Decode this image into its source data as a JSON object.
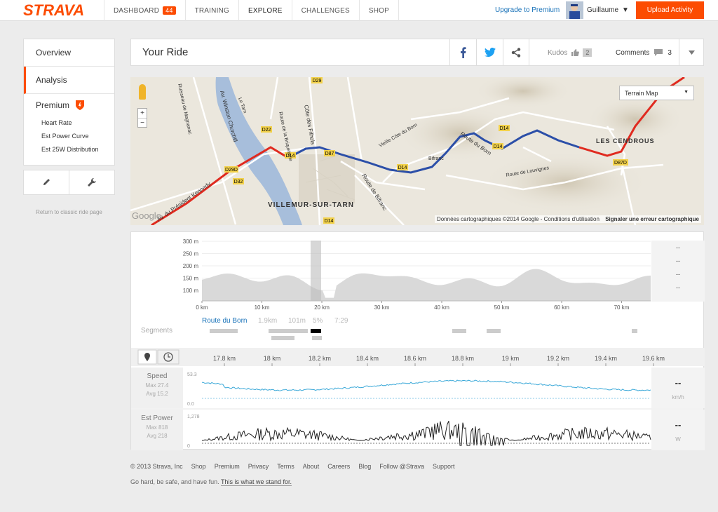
{
  "app": {
    "logo": "STRAVA",
    "brand_color": "#fc4c02"
  },
  "nav": {
    "items": [
      {
        "label": "DASHBOARD",
        "badge": "44"
      },
      {
        "label": "TRAINING"
      },
      {
        "label": "EXPLORE"
      },
      {
        "label": "CHALLENGES"
      },
      {
        "label": "SHOP"
      }
    ],
    "upgrade": "Upgrade to Premium",
    "user": "Guillaume",
    "upload": "Upload Activity"
  },
  "sidebar": {
    "overview": "Overview",
    "analysis": "Analysis",
    "premium": "Premium",
    "premium_items": [
      "Heart Rate",
      "Est Power Curve",
      "Est 25W Distribution"
    ],
    "classic": "Return to classic ride page"
  },
  "header": {
    "title": "Your Ride",
    "kudos_label": "Kudos",
    "kudos_count": "2",
    "comments_label": "Comments",
    "comments_count": "3"
  },
  "map": {
    "type_select": "Terrain Map",
    "zoom_in": "+",
    "zoom_out": "−",
    "attribution": "Données cartographiques ©2014 Google - Conditions d'utilisation",
    "report": "Signaler une erreur cartographique",
    "google": "Google",
    "labels": [
      "VILLEMUR-SUR-TARN",
      "LES CENDROUS",
      "Route du Born",
      "Route de Bifranc",
      "Route de Louvignes",
      "Vieille Côte du Born",
      "Côte des Filhols",
      "Av. Winston Churchill",
      "Le Tarn",
      "Av. du Président Kennedy",
      "Ruisseau de Magnanac",
      "Bifranc",
      "Route de la Briqueterie"
    ],
    "road_badges": [
      "D29",
      "D22",
      "D29D",
      "D32",
      "D14",
      "D87",
      "D14",
      "D14",
      "D87D",
      "D14",
      "D14"
    ]
  },
  "elevation": {
    "y_ticks": [
      "300 m",
      "250 m",
      "200 m",
      "150 m",
      "100 m"
    ],
    "x_ticks": [
      "0 km",
      "10 km",
      "20 km",
      "30 km",
      "40 km",
      "50 km",
      "60 km",
      "70 km"
    ],
    "right_dashes": [
      "--",
      "--",
      "--",
      "--"
    ]
  },
  "segments": {
    "label": "Segments",
    "name": "Route du Born",
    "dist": "1.9km",
    "elev": "101m",
    "grade": "5%",
    "time": "7:29"
  },
  "zoom_axis": {
    "ticks": [
      "17.8 km",
      "18 km",
      "18.2 km",
      "18.4 km",
      "18.6 km",
      "18.8 km",
      "19 km",
      "19.2 km",
      "19.4 km",
      "19.6 km"
    ]
  },
  "speed": {
    "label": "Speed",
    "max": "Max 27.4",
    "avg": "Avg 15.2",
    "top": "53.3",
    "bottom": "0.0",
    "value": "--",
    "unit": "km/h",
    "color": "#3aa8d8"
  },
  "power": {
    "label": "Est Power",
    "max": "Max 818",
    "avg": "Avg 218",
    "top": "1,278",
    "bottom": "0",
    "value": "--",
    "unit": "W",
    "color": "#222"
  },
  "footer": {
    "links": [
      "© 2013 Strava, Inc",
      "Shop",
      "Premium",
      "Privacy",
      "Terms",
      "About",
      "Careers",
      "Blog",
      "Follow @Strava",
      "Support"
    ],
    "motto": "Go hard, be safe, and have fun.",
    "motto_link": "This is what we stand for."
  }
}
